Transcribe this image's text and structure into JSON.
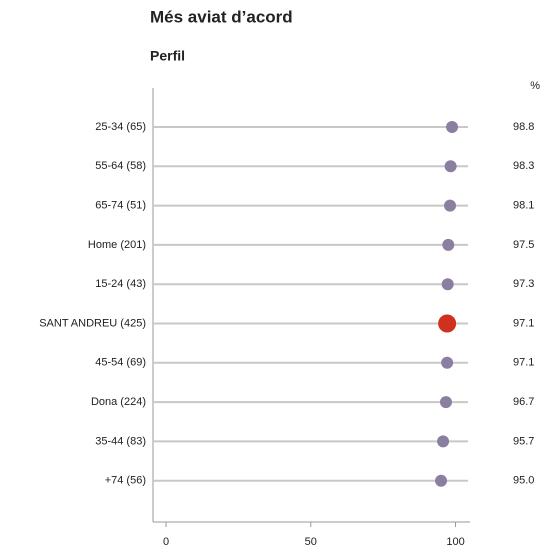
{
  "chart_data": {
    "type": "dot",
    "title": "Més aviat d’acord",
    "subtitle": "Perfil",
    "value_header": "%",
    "categories": [
      "25-34 (65)",
      "55-64 (58)",
      "65-74 (51)",
      "Home (201)",
      "15-24 (43)",
      "SANT ANDREU (425)",
      "45-54 (69)",
      "Dona (224)",
      "35-44 (83)",
      "+74 (56)"
    ],
    "values": [
      98.8,
      98.3,
      98.1,
      97.5,
      97.3,
      97.1,
      97.1,
      96.7,
      95.7,
      95.0
    ],
    "value_labels": [
      "98.8",
      "98.3",
      "98.1",
      "97.5",
      "97.3",
      "97.1",
      "97.1",
      "96.7",
      "95.7",
      "95.0"
    ],
    "colors": [
      "#8a7fa0",
      "#8a7fa0",
      "#8a7fa0",
      "#8a7fa0",
      "#8a7fa0",
      "#d0311f",
      "#8a7fa0",
      "#8a7fa0",
      "#8a7fa0",
      "#8a7fa0"
    ],
    "xlim": [
      -4.5,
      105
    ],
    "xticks": [
      0,
      50,
      100
    ]
  }
}
